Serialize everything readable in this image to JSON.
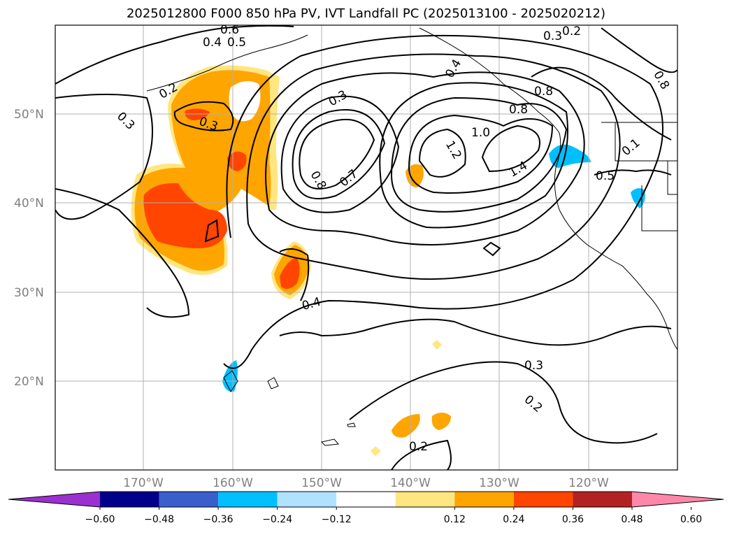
{
  "title": "2025012800 F000 850 hPa PV, IVT Landfall PC (2025013100 - 2025020212)",
  "map": {
    "lat_labels": [
      "50°N",
      "40°N",
      "30°N",
      "20°N"
    ],
    "lon_labels": [
      "170°W",
      "160°W",
      "150°W",
      "140°W",
      "130°W",
      "120°W"
    ],
    "contour_labels": [
      "0.2",
      "0.3",
      "0.4",
      "0.5",
      "0.6",
      "0.7",
      "0.8",
      "0.8",
      "0.3",
      "1.0",
      "1.2",
      "1.4",
      "0.5",
      "0.8",
      "0.4",
      "0.3",
      "0.2",
      "0.2",
      "0.3",
      "0.2",
      "0.3",
      "0.4",
      "0.8",
      "0.1"
    ]
  },
  "colorbar": {
    "ticks": [
      "−0.60",
      "−0.48",
      "−0.36",
      "−0.24",
      "−0.12",
      "0.12",
      "0.24",
      "0.36",
      "0.48",
      "0.60"
    ],
    "colors": [
      "#9b30d0",
      "#00008b",
      "#3a5fcd",
      "#00bfff",
      "#b0e2ff",
      "#ffffff",
      "#ffe680",
      "#ffa500",
      "#ff4500",
      "#b22222",
      "#ff88aa"
    ]
  },
  "fill_colors": {
    "light_yellow": "#ffe680",
    "orange": "#ffa500",
    "red_orange": "#ff4500",
    "light_blue": "#00bfff"
  }
}
